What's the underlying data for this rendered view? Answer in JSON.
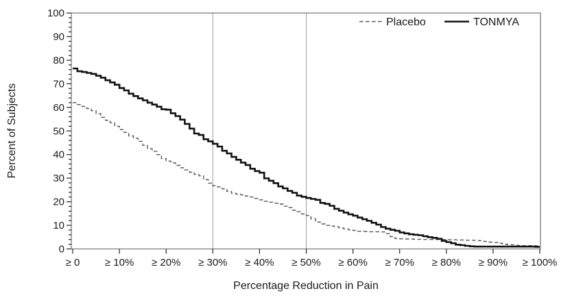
{
  "figure": {
    "ylabel": "Percent of Subjects",
    "xlabel": "Percentage Reduction in Pain",
    "legend": {
      "placebo_label": "Placebo",
      "tonmya_label": "TONMYA"
    }
  },
  "colors": {
    "background": "#ffffff",
    "frame": "#7d7d7d",
    "reference_line": "#9c9c9c",
    "tick": "#222222",
    "text": "#1a1a1a",
    "placebo_line": "#565656",
    "tonmya_line": "#111111"
  },
  "chart_data": {
    "type": "line",
    "subtype": "step-cdf",
    "title": "",
    "xlabel": "Percentage Reduction in Pain",
    "ylabel": "Percent of Subjects",
    "grid": false,
    "legend_position": "top-right-inside",
    "ylim": [
      0,
      100
    ],
    "y_ticks": [
      0,
      10,
      20,
      30,
      40,
      50,
      60,
      70,
      80,
      90,
      100
    ],
    "y_minor_tick_step": 2,
    "xlim": [
      0,
      100
    ],
    "x_tick_values": [
      0,
      10,
      20,
      30,
      40,
      50,
      60,
      70,
      80,
      90,
      100
    ],
    "x_tick_labels": [
      "≥ 0",
      "≥ 10%",
      "≥ 20%",
      "≥ 30%",
      "≥ 40%",
      "≥ 50%",
      "≥ 60%",
      "≥ 70%",
      "≥ 80%",
      "≥ 90%",
      "≥ 100%"
    ],
    "reference_lines_x": [
      30,
      50
    ],
    "x": [
      0,
      1,
      2,
      3,
      4,
      5,
      6,
      7,
      8,
      9,
      10,
      11,
      12,
      13,
      14,
      15,
      16,
      17,
      18,
      19,
      20,
      21,
      22,
      23,
      24,
      25,
      26,
      27,
      28,
      29,
      30,
      31,
      32,
      33,
      34,
      35,
      36,
      37,
      38,
      39,
      40,
      41,
      42,
      43,
      44,
      45,
      46,
      47,
      48,
      49,
      50,
      51,
      52,
      53,
      54,
      55,
      56,
      57,
      58,
      59,
      60,
      61,
      62,
      63,
      64,
      65,
      66,
      67,
      68,
      69,
      70,
      71,
      72,
      73,
      74,
      75,
      76,
      77,
      78,
      79,
      80,
      81,
      82,
      83,
      84,
      85,
      86,
      87,
      88,
      89,
      90,
      91,
      92,
      93,
      94,
      95,
      96,
      97,
      98,
      99,
      100
    ],
    "series": [
      {
        "name": "Placebo",
        "style": "dashed",
        "color": "#565656",
        "width": 1.4,
        "values": [
          62.0,
          61.2,
          60.4,
          59.5,
          58.6,
          57.3,
          55.8,
          54.5,
          53.5,
          52.0,
          50.6,
          49.4,
          47.9,
          46.9,
          45.6,
          43.9,
          42.5,
          41.4,
          40.0,
          38.3,
          37.2,
          36.5,
          35.4,
          34.4,
          33.5,
          32.5,
          31.6,
          31.0,
          29.4,
          27.9,
          26.8,
          26.3,
          25.5,
          24.4,
          23.6,
          23.2,
          22.9,
          22.4,
          22.0,
          21.4,
          20.8,
          20.2,
          19.8,
          19.4,
          19.0,
          18.1,
          17.5,
          16.4,
          15.8,
          14.8,
          14.2,
          12.8,
          11.4,
          10.6,
          10.0,
          9.7,
          9.4,
          8.9,
          8.5,
          8.1,
          7.8,
          7.5,
          7.4,
          7.3,
          7.3,
          7.3,
          7.2,
          6.5,
          5.2,
          4.4,
          4.3,
          4.2,
          4.2,
          4.1,
          4.1,
          4.0,
          4.0,
          4.0,
          4.0,
          4.0,
          3.9,
          3.9,
          3.8,
          3.8,
          3.7,
          3.7,
          3.6,
          3.5,
          3.2,
          2.9,
          2.8,
          2.4,
          2.0,
          1.8,
          1.7,
          1.5,
          1.4,
          1.4,
          1.4,
          1.3,
          1.3
        ]
      },
      {
        "name": "TONMYA",
        "style": "solid",
        "color": "#111111",
        "width": 2.6,
        "values": [
          76.5,
          75.3,
          75.0,
          74.6,
          74.2,
          73.4,
          72.6,
          71.5,
          70.6,
          69.6,
          68.2,
          67.2,
          65.8,
          64.8,
          63.8,
          63.0,
          62.0,
          61.2,
          60.3,
          59.2,
          59.0,
          57.5,
          56.3,
          54.8,
          53.0,
          51.0,
          48.9,
          48.3,
          46.5,
          45.6,
          44.6,
          43.4,
          41.6,
          40.5,
          39.0,
          37.8,
          36.6,
          35.6,
          34.0,
          33.0,
          32.3,
          29.9,
          28.9,
          27.9,
          26.5,
          25.7,
          24.6,
          23.8,
          22.6,
          22.1,
          21.6,
          21.2,
          20.8,
          19.5,
          19.1,
          18.3,
          17.0,
          16.2,
          15.4,
          14.7,
          14.1,
          13.3,
          12.6,
          11.9,
          11.1,
          10.3,
          9.3,
          8.6,
          8.1,
          7.7,
          7.0,
          6.6,
          6.2,
          6.0,
          5.8,
          5.4,
          5.0,
          4.7,
          4.3,
          3.4,
          2.9,
          2.4,
          1.8,
          1.6,
          1.3,
          1.1,
          1.0,
          1.0,
          1.0,
          1.0,
          1.0,
          1.0,
          1.0,
          1.0,
          1.0,
          1.0,
          1.0,
          1.0,
          1.0,
          0.9,
          0.9
        ]
      }
    ]
  }
}
